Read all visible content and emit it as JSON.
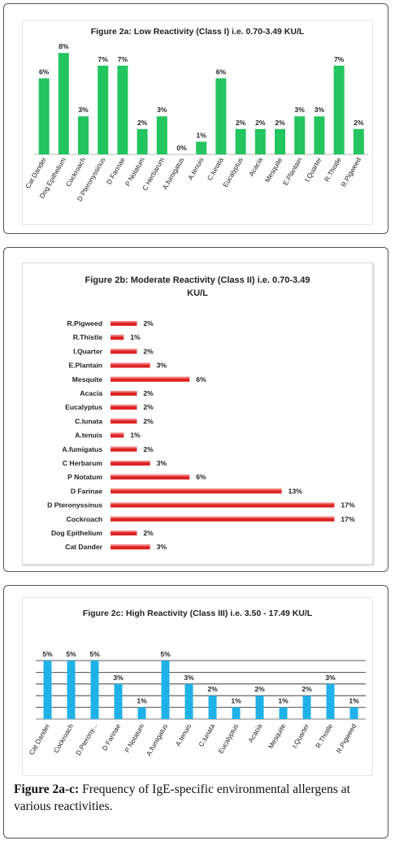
{
  "caption": {
    "label": "Figure 2a-c:",
    "text": "Frequency of IgE-specific environmental allergens at various reactivities."
  },
  "colors": {
    "low": "#22c55e",
    "moderate": "#dd2222",
    "high": "#1fb1e8"
  },
  "chart_data": [
    {
      "type": "bar",
      "title": "Figure 2a: Low Reactivity (Class I) i.e. 0.70-3.49 KU/L",
      "categories": [
        "Cat Dander",
        "Dog Epithelium",
        "Cockroach",
        "D Pteronyssinus",
        "D Farinae",
        "P Notatum",
        "C Herbarum",
        "A.fumigatus",
        "A.tenuis",
        "C.lunata",
        "Eucalyptus",
        "Acacia",
        "Mesquite",
        "E.Plantain",
        "I.Quarter",
        "R.Thistle",
        "R.Pigweed"
      ],
      "values": [
        6,
        8,
        3,
        7,
        7,
        2,
        3,
        0,
        1,
        6,
        2,
        2,
        2,
        3,
        3,
        7,
        2
      ],
      "labels": [
        "6%",
        "8%",
        "3%",
        "7%",
        "7%",
        "2%",
        "3%",
        "0%",
        "1%",
        "6%",
        "2%",
        "2%",
        "2%",
        "3%",
        "3%",
        "7%",
        "2%"
      ],
      "ylim": [
        0,
        8
      ],
      "grid": false,
      "xlabel": "",
      "ylabel": ""
    },
    {
      "type": "bar",
      "orientation": "horizontal",
      "title": "Figure 2b: Moderate Reactivity (Class II) i.e. 0.70-3.49",
      "title_line2": "KU/L",
      "categories": [
        "R.Pigweed",
        "R.Thistle",
        "I.Quarter",
        "E.Plantain",
        "Mesquite",
        "Acacia",
        "Eucalyptus",
        "C.lunata",
        "A.tenuis",
        "A.fumigatus",
        "C Herbarum",
        "P Notatum",
        "D Farinae",
        "D Pteronyssinus",
        "Cockroach",
        "Dog Epithelium",
        "Cat Dander"
      ],
      "values": [
        2,
        1,
        2,
        3,
        6,
        2,
        2,
        2,
        1,
        2,
        3,
        6,
        13,
        17,
        17,
        2,
        3
      ],
      "labels": [
        "2%",
        "1%",
        "2%",
        "3%",
        "6%",
        "2%",
        "2%",
        "2%",
        "1%",
        "2%",
        "3%",
        "6%",
        "13%",
        "17%",
        "17%",
        "2%",
        "3%"
      ],
      "xlim": [
        0,
        17
      ],
      "grid": false,
      "xlabel": "",
      "ylabel": ""
    },
    {
      "type": "bar",
      "title": "Figure 2c: High Reactivity (Class III) i.e. 3.50 - 17.49 KU/L",
      "categories": [
        "Cat Dander",
        "Cockroach",
        "D.Pterony...",
        "D Farinae",
        "P Notatum",
        "A.fumigatus",
        "A.tenuis",
        "C.lunata",
        "Eucalyptus",
        "Acacia",
        "Mesquite",
        "I.Quarter",
        "R.Thistle",
        "R.Pigweed"
      ],
      "values": [
        5,
        5,
        5,
        3,
        1,
        5,
        3,
        2,
        1,
        2,
        1,
        2,
        3,
        1
      ],
      "labels": [
        "5%",
        "5%",
        "5%",
        "3%",
        "1%",
        "5%",
        "3%",
        "2%",
        "1%",
        "2%",
        "1%",
        "2%",
        "3%",
        "1%"
      ],
      "ylim": [
        0,
        5
      ],
      "grid": true,
      "xlabel": "",
      "ylabel": ""
    }
  ]
}
